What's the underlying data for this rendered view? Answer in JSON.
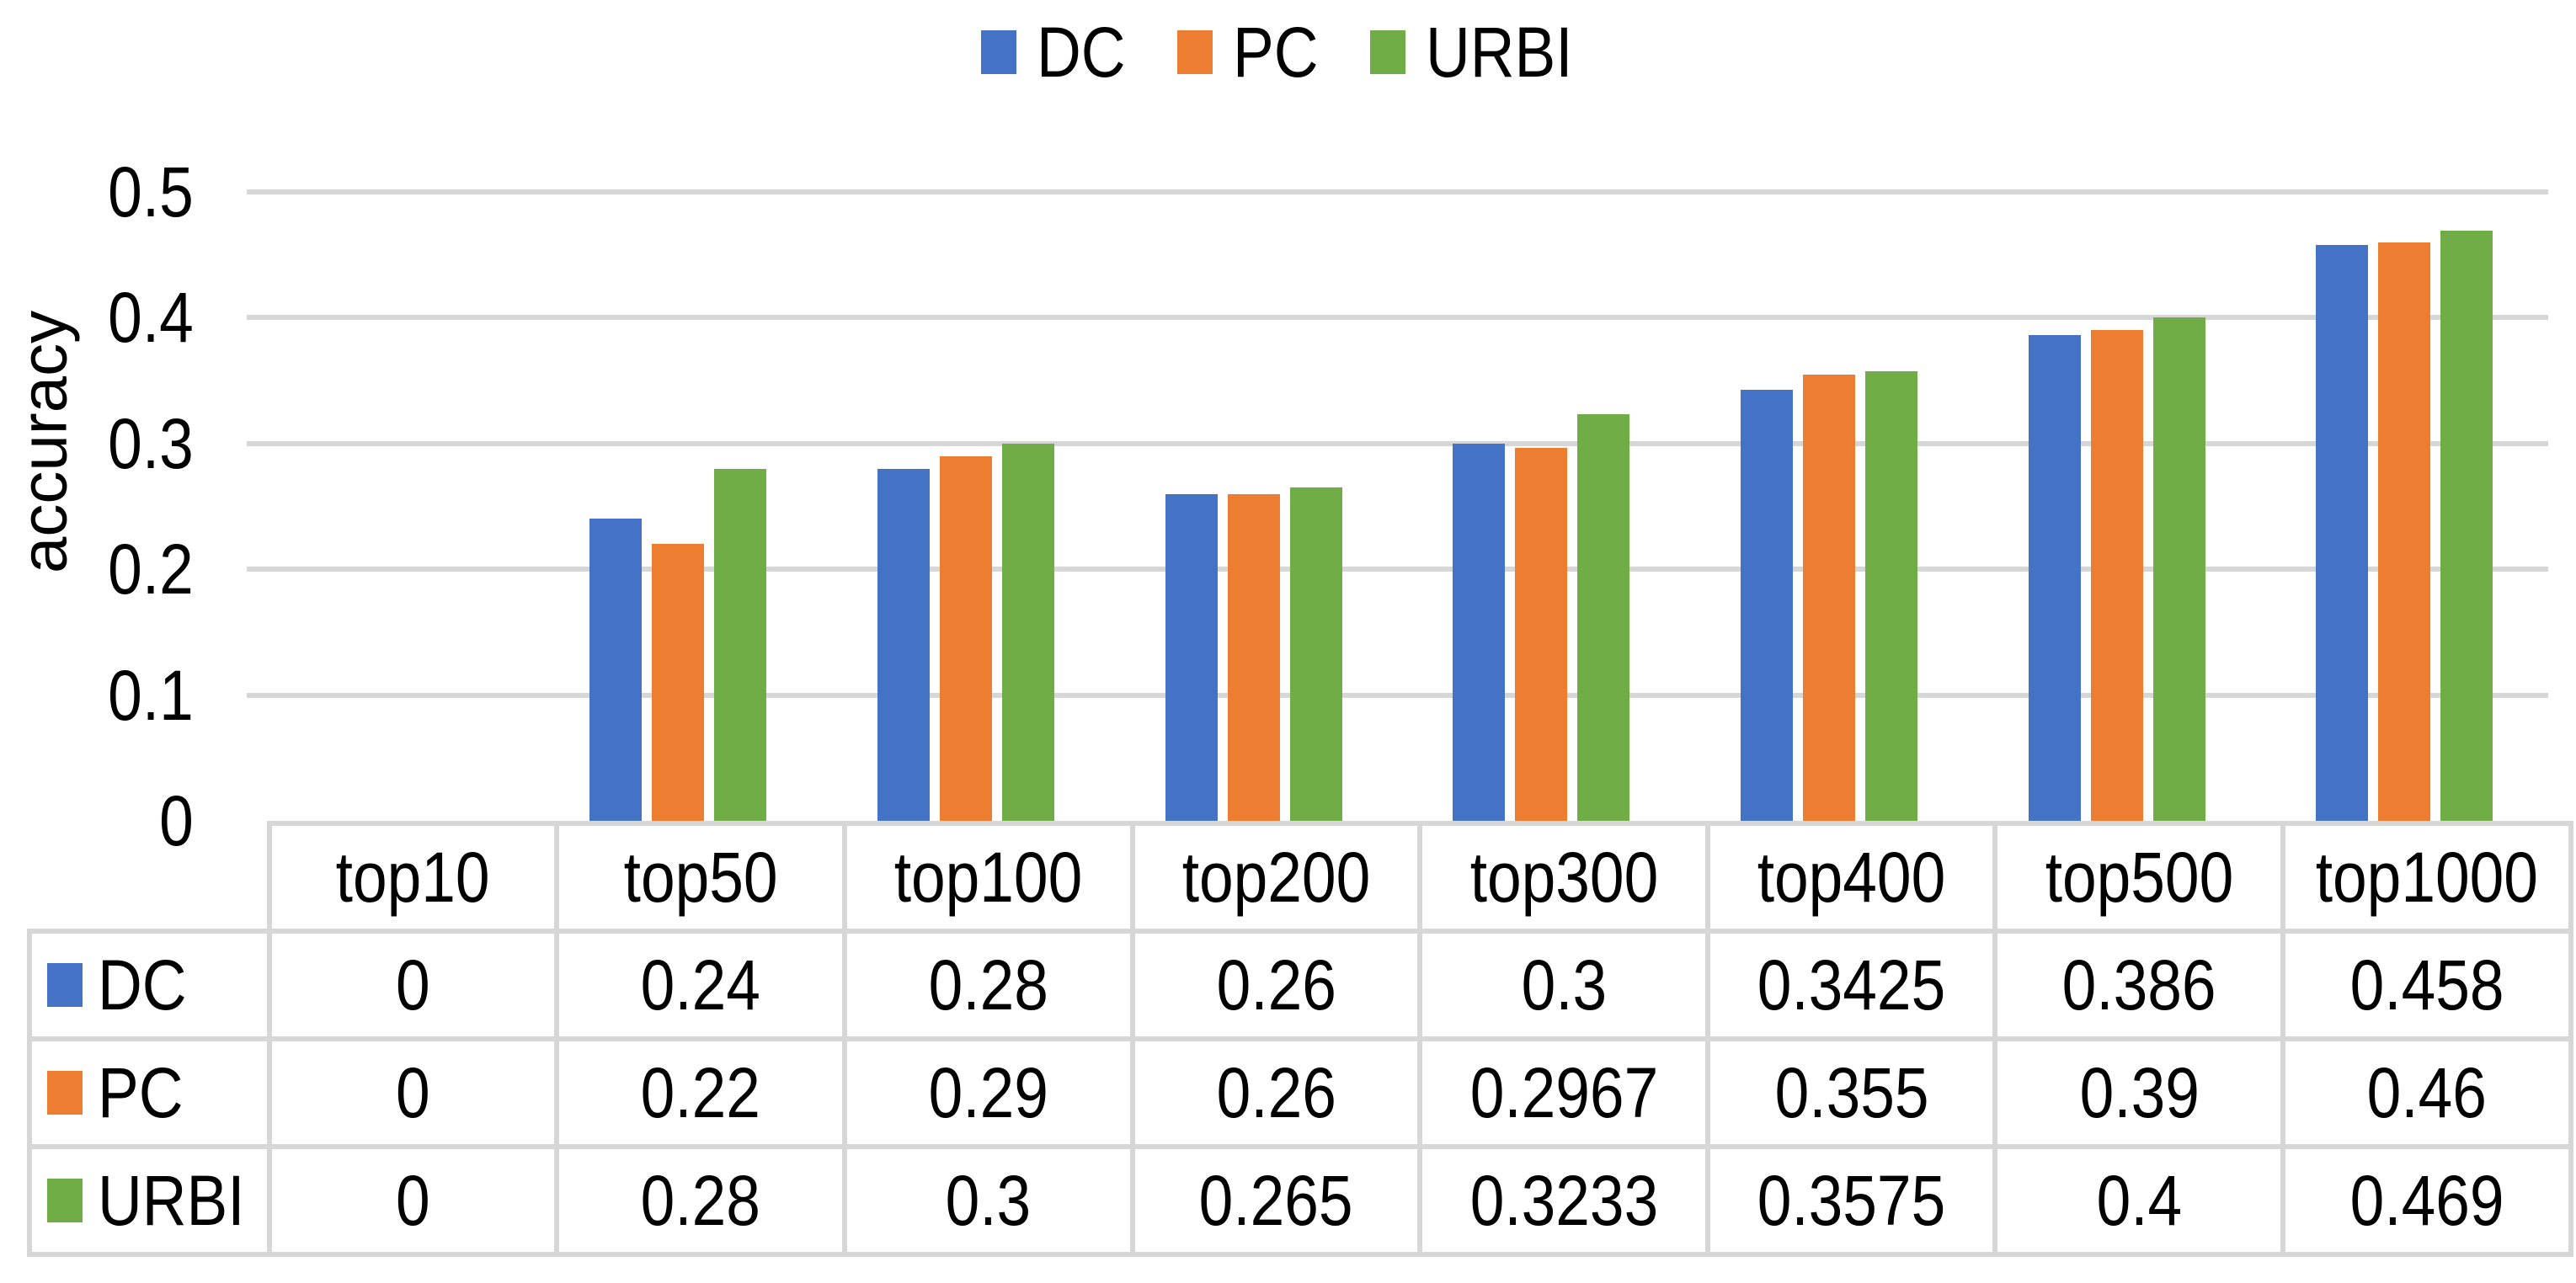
{
  "chart_data": {
    "type": "bar",
    "title": "",
    "ylabel": "accuracy",
    "xlabel": "",
    "ylim": [
      0,
      0.5
    ],
    "yticks": [
      "0",
      "0.1",
      "0.2",
      "0.3",
      "0.4",
      "0.5"
    ],
    "grid": true,
    "legend_position": "top",
    "has_data_table": true,
    "gridline_color": "#D7D7D7",
    "background": "#FFFFFF",
    "categories": [
      "top10",
      "top50",
      "top100",
      "top200",
      "top300",
      "top400",
      "top500",
      "top1000"
    ],
    "series": [
      {
        "name": "DC",
        "color": "#4472C4",
        "values": [
          0,
          0.24,
          0.28,
          0.26,
          0.3,
          0.3425,
          0.386,
          0.458
        ],
        "labels": [
          "0",
          "0.24",
          "0.28",
          "0.26",
          "0.3",
          "0.3425",
          "0.386",
          "0.458"
        ]
      },
      {
        "name": "PC",
        "color": "#ED7D31",
        "values": [
          0,
          0.22,
          0.29,
          0.26,
          0.2967,
          0.355,
          0.39,
          0.46
        ],
        "labels": [
          "0",
          "0.22",
          "0.29",
          "0.26",
          "0.2967",
          "0.355",
          "0.39",
          "0.46"
        ]
      },
      {
        "name": "URBI",
        "color": "#70AD47",
        "values": [
          0,
          0.28,
          0.3,
          0.265,
          0.3233,
          0.3575,
          0.4,
          0.469
        ],
        "labels": [
          "0",
          "0.28",
          "0.3",
          "0.265",
          "0.3233",
          "0.3575",
          "0.4",
          "0.469"
        ]
      }
    ]
  }
}
